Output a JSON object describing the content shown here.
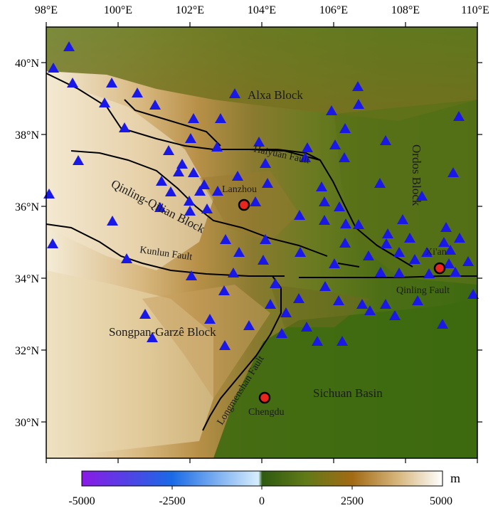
{
  "map": {
    "lon_ticks": [
      "98°E",
      "100°E",
      "102°E",
      "104°E",
      "106°E",
      "108°E",
      "110°E"
    ],
    "lat_ticks": [
      "40°N",
      "38°N",
      "36°N",
      "34°N",
      "32°N",
      "30°N"
    ],
    "regions": {
      "alxa": "Alxa Block",
      "ordos": "Ordos Block",
      "qinling_qilian": "Qinling-Qilian Block",
      "songpan": "Songpan-Garzê Block",
      "sichuan": "Sichuan Basin"
    },
    "faults": {
      "haiyuan": "Haiyuan Fault",
      "kunlun": "Kunlun Fault",
      "qinling": "Qinling Fault",
      "longmenshan": "Longmenshan Fault"
    },
    "cities": {
      "lanzhou": "Lanzhou",
      "xian": "Xi'an",
      "chengdu": "Chengdu"
    },
    "colors": {
      "station": "#1a18e6",
      "city": "#e8261e",
      "fault": "#000000"
    },
    "station_icon": "triangle-icon",
    "city_icon": "circle-icon"
  },
  "colorbar": {
    "ticks": [
      "-5000",
      "-2500",
      "0",
      "2500",
      "5000"
    ],
    "unit": "m",
    "colors": [
      "#8a1ae6",
      "#1a6ae6",
      "#d6eefc",
      "#3e6a10",
      "#a36a14",
      "#ffffff"
    ]
  }
}
